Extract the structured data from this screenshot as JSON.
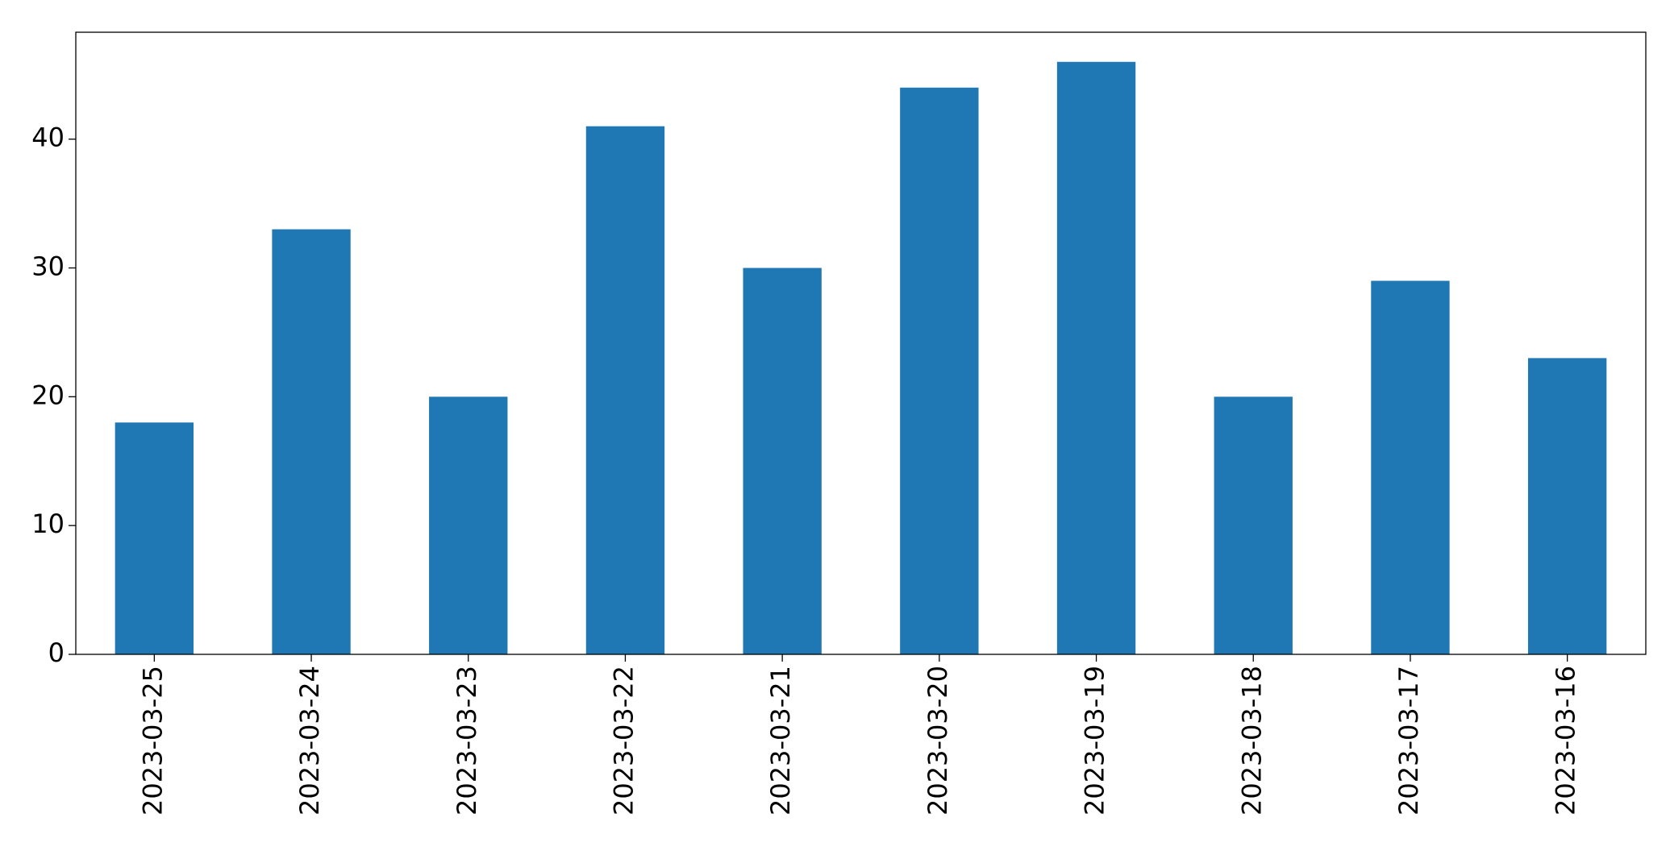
{
  "chart_data": {
    "type": "bar",
    "categories": [
      "2023-03-25",
      "2023-03-24",
      "2023-03-23",
      "2023-03-22",
      "2023-03-21",
      "2023-03-20",
      "2023-03-19",
      "2023-03-18",
      "2023-03-17",
      "2023-03-16"
    ],
    "values": [
      18,
      33,
      20,
      41,
      30,
      44,
      46,
      20,
      29,
      23
    ],
    "color": "#1f77b4",
    "ylim": [
      0,
      48.3
    ],
    "yticks": [
      0,
      10,
      20,
      30,
      40
    ],
    "grid": false
  }
}
